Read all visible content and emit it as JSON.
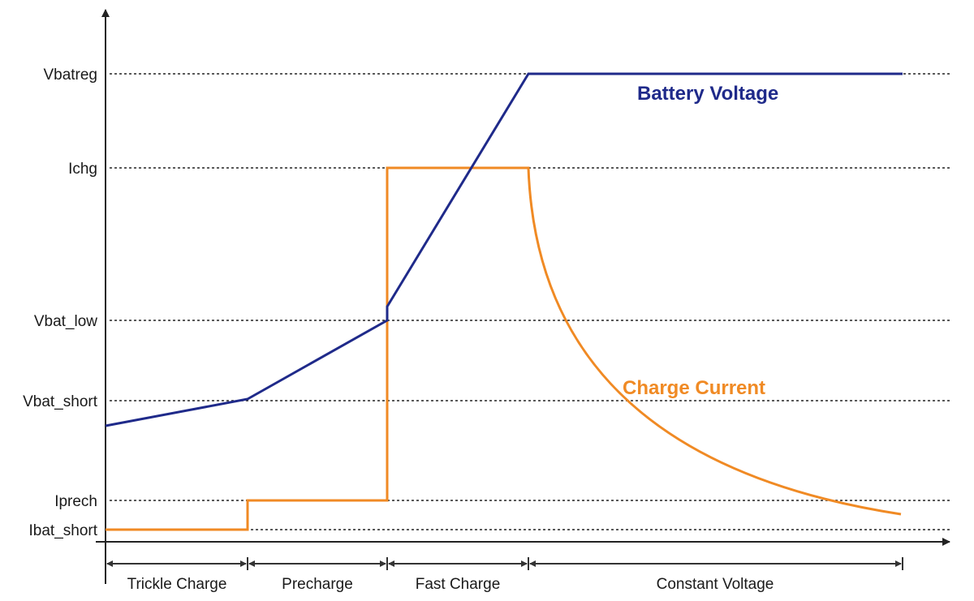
{
  "chart_data": {
    "type": "line",
    "title": "",
    "xlabel": "",
    "ylabel": "",
    "levels": [
      "Vbatreg",
      "Ichg",
      "Vbat_low",
      "Vbat_short",
      "Iprech",
      "Ibat_short"
    ],
    "phases": [
      "Trickle Charge",
      "Precharge",
      "Fast Charge",
      "Constant Voltage"
    ],
    "series": [
      {
        "name": "Battery Voltage",
        "color": "#1f2a8a",
        "shape": "rises slowly to Vbat_short in trickle charge, to Vbat_low in precharge, steps up then rises linearly to Vbatreg during fast charge, flat at Vbatreg in constant voltage"
      },
      {
        "name": "Charge Current",
        "color": "#f08a24",
        "shape": "Ibat_short in trickle charge, Iprech in precharge, Ichg in fast charge, decays exponentially toward Iprech in constant voltage"
      }
    ],
    "grid": "dotted lines at each level"
  }
}
